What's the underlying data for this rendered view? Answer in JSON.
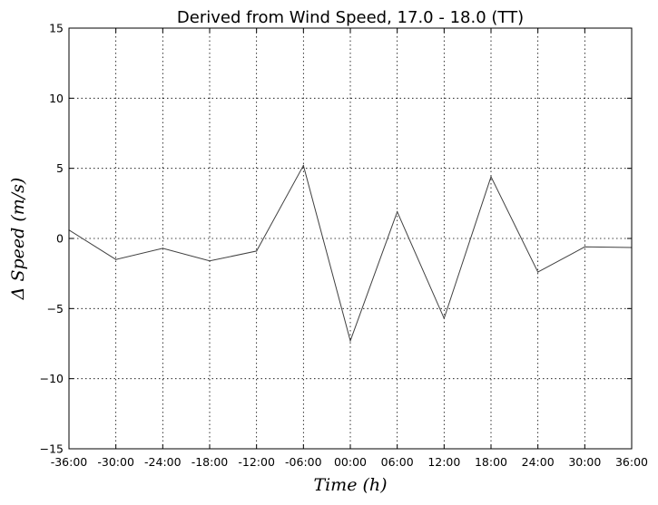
{
  "chart_data": {
    "type": "line",
    "title": "Derived from Wind Speed, 17.0 - 18.0 (TT)",
    "xlabel": "Time (h)",
    "ylabel": "Δ Speed (m/s)",
    "xlim": [
      -36,
      36
    ],
    "ylim": [
      -15,
      15
    ],
    "x_ticks": [
      -36,
      -30,
      -24,
      -18,
      -12,
      -6,
      0,
      6,
      12,
      18,
      24,
      30,
      36
    ],
    "x_tick_labels": [
      "-36:00",
      "-30:00",
      "-24:00",
      "-18:00",
      "-12:00",
      "-06:00",
      "00:00",
      "06:00",
      "12:00",
      "18:00",
      "24:00",
      "30:00",
      "36:00"
    ],
    "y_ticks": [
      -15,
      -10,
      -5,
      0,
      5,
      10,
      15
    ],
    "y_tick_labels": [
      "−15",
      "−10",
      "−5",
      "0",
      "5",
      "10",
      "15"
    ],
    "grid": true,
    "series": [
      {
        "color": "#404040",
        "x": [
          -36,
          -30,
          -24,
          -18,
          -12,
          -6,
          0,
          6,
          12,
          18,
          24,
          30,
          36
        ],
        "y": [
          0.6,
          -1.5,
          -0.7,
          -1.6,
          -0.9,
          5.2,
          -7.3,
          1.9,
          -5.7,
          4.4,
          -2.4,
          -0.6,
          -0.65
        ]
      }
    ]
  }
}
